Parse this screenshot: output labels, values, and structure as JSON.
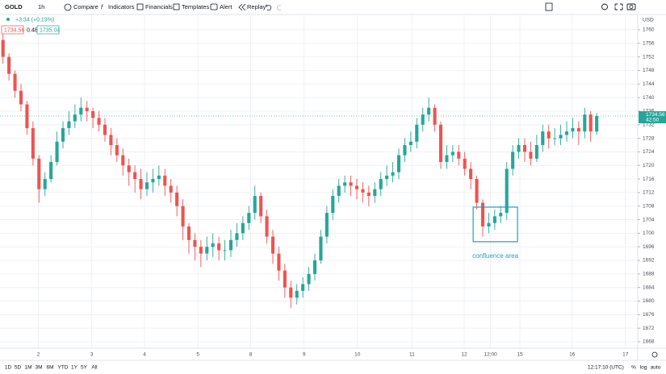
{
  "toolbar": {
    "symbol": "GOLD",
    "interval": "1h",
    "buttons": [
      "Compare",
      "Indicators",
      "Financials",
      "Templates",
      "Alert",
      "Replay"
    ]
  },
  "legend": {
    "change": "+3.34 (+0.19%)",
    "bid": "1734.56",
    "spread": "0.48",
    "ask": "1735.04"
  },
  "bottom_bar": {
    "ranges": [
      "1D",
      "5D",
      "1M",
      "3M",
      "6M",
      "YTD",
      "1Y",
      "5Y",
      "All"
    ],
    "clock": "12:17:10 (UTC)",
    "options": [
      "%",
      "log",
      "auto"
    ]
  },
  "chart_data": {
    "type": "candlestick",
    "currency": "USD",
    "countdown": "42:50",
    "up_color": "#26a69a",
    "down_color": "#ef5350",
    "grid": true,
    "x": [
      0,
      1,
      2,
      3,
      4,
      5,
      6,
      7,
      8,
      9,
      10,
      11,
      12,
      13,
      14,
      15,
      16,
      17,
      18,
      19,
      20,
      21,
      22,
      23,
      24,
      25,
      26,
      27,
      28,
      29,
      30,
      31,
      32,
      33,
      34,
      35,
      36,
      37,
      38,
      39,
      40,
      41,
      42,
      43,
      44,
      45,
      46,
      47,
      48,
      49,
      50,
      51,
      52,
      53,
      54,
      55,
      56,
      57,
      58,
      59,
      60,
      61,
      62,
      63,
      64,
      65,
      66,
      67,
      68,
      69,
      70,
      71,
      72,
      73,
      74,
      75,
      76,
      77,
      78,
      79,
      80,
      81,
      82,
      83,
      84,
      85,
      86,
      87,
      88,
      89,
      90,
      91,
      92,
      93,
      94,
      95,
      96,
      97,
      98,
      99
    ],
    "open": [
      1757,
      1752,
      1747,
      1742,
      1738,
      1731,
      1722,
      1713,
      1716,
      1721,
      1727,
      1731,
      1733,
      1735,
      1737,
      1736,
      1734,
      1732,
      1729,
      1726,
      1723,
      1720,
      1718,
      1716,
      1713,
      1715,
      1716,
      1717,
      1714,
      1712,
      1708,
      1702,
      1698,
      1696,
      1694,
      1696,
      1697,
      1695,
      1695,
      1698,
      1700,
      1703,
      1706,
      1711,
      1705,
      1699,
      1694,
      1689,
      1684,
      1681,
      1683,
      1685,
      1688,
      1692,
      1699,
      1706,
      1711,
      1714,
      1715,
      1714,
      1713,
      1712,
      1711,
      1713,
      1716,
      1717,
      1718,
      1723,
      1726,
      1727,
      1732,
      1735,
      1737,
      1732,
      1721,
      1723,
      1724,
      1722,
      1719,
      1716,
      1709,
      1702,
      1703,
      1705,
      1706,
      1719,
      1724,
      1726,
      1724,
      1722,
      1726,
      1730,
      1728,
      1728,
      1729,
      1730,
      1731,
      1730,
      1735,
      1730
    ],
    "high": [
      1759,
      1753,
      1748,
      1744,
      1739,
      1733,
      1723,
      1718,
      1723,
      1730,
      1733,
      1736,
      1738,
      1740,
      1739,
      1737,
      1736,
      1734,
      1731,
      1728,
      1725,
      1722,
      1720,
      1719,
      1718,
      1719,
      1720,
      1719,
      1716,
      1714,
      1710,
      1703,
      1700,
      1698,
      1699,
      1700,
      1699,
      1698,
      1701,
      1703,
      1705,
      1708,
      1714,
      1712,
      1707,
      1701,
      1696,
      1691,
      1686,
      1685,
      1687,
      1690,
      1694,
      1701,
      1708,
      1713,
      1716,
      1717,
      1717,
      1716,
      1715,
      1714,
      1715,
      1718,
      1720,
      1721,
      1725,
      1728,
      1730,
      1734,
      1737,
      1740,
      1738,
      1733,
      1726,
      1726,
      1726,
      1724,
      1721,
      1717,
      1710,
      1706,
      1707,
      1708,
      1721,
      1726,
      1728,
      1728,
      1727,
      1729,
      1732,
      1732,
      1731,
      1732,
      1733,
      1734,
      1733,
      1737,
      1736,
      1735.5
    ],
    "low": [
      1750,
      1745,
      1740,
      1736,
      1729,
      1720,
      1709,
      1711,
      1715,
      1720,
      1725,
      1729,
      1731,
      1733,
      1733,
      1731,
      1730,
      1727,
      1723,
      1721,
      1717,
      1714,
      1712,
      1710,
      1711,
      1712,
      1714,
      1711,
      1709,
      1705,
      1698,
      1694,
      1692,
      1690,
      1692,
      1693,
      1692,
      1692,
      1693,
      1696,
      1698,
      1701,
      1704,
      1703,
      1697,
      1691,
      1686,
      1681,
      1678,
      1679,
      1681,
      1683,
      1686,
      1691,
      1697,
      1704,
      1709,
      1712,
      1711,
      1710,
      1709,
      1708,
      1709,
      1711,
      1714,
      1715,
      1716,
      1721,
      1724,
      1725,
      1730,
      1733,
      1730,
      1719,
      1719,
      1721,
      1720,
      1717,
      1713,
      1707,
      1699,
      1700,
      1701,
      1703,
      1704,
      1717,
      1722,
      1721,
      1720,
      1721,
      1724,
      1725,
      1726,
      1726,
      1727,
      1728,
      1726,
      1728,
      1727,
      1729
    ],
    "close": [
      1752,
      1747,
      1742,
      1738,
      1731,
      1722,
      1713,
      1716,
      1721,
      1727,
      1731,
      1733,
      1735,
      1737,
      1736,
      1734,
      1732,
      1729,
      1726,
      1723,
      1720,
      1718,
      1716,
      1713,
      1715,
      1716,
      1717,
      1714,
      1712,
      1708,
      1702,
      1698,
      1696,
      1694,
      1696,
      1697,
      1695,
      1695,
      1698,
      1700,
      1703,
      1706,
      1711,
      1705,
      1699,
      1694,
      1689,
      1684,
      1681,
      1683,
      1685,
      1688,
      1692,
      1699,
      1706,
      1711,
      1714,
      1715,
      1714,
      1713,
      1712,
      1711,
      1713,
      1716,
      1717,
      1718,
      1723,
      1726,
      1727,
      1732,
      1735,
      1737,
      1732,
      1721,
      1723,
      1724,
      1722,
      1719,
      1716,
      1709,
      1702,
      1703,
      1705,
      1706,
      1719,
      1724,
      1726,
      1724,
      1722,
      1726,
      1730,
      1728,
      1728,
      1729,
      1730,
      1731,
      1730,
      1735,
      1730,
      1734.56
    ],
    "xlim": [
      -0.5,
      104.5
    ],
    "xticks": [
      {
        "value": 5.9,
        "label": "2"
      },
      {
        "value": 14.8,
        "label": "3"
      },
      {
        "value": 23.6,
        "label": "4"
      },
      {
        "value": 32.5,
        "label": "5"
      },
      {
        "value": 41.3,
        "label": "8"
      },
      {
        "value": 50.2,
        "label": "9"
      },
      {
        "value": 59.1,
        "label": "10"
      },
      {
        "value": 68.2,
        "label": "11"
      },
      {
        "value": 76.9,
        "label": "12"
      },
      {
        "value": 81.3,
        "label": "12:00"
      },
      {
        "value": 86.2,
        "label": "15"
      },
      {
        "value": 94.9,
        "label": "16"
      },
      {
        "value": 103.8,
        "label": "17"
      }
    ],
    "ylim": [
      1666.1,
      1764.5
    ],
    "yticks": [
      1668,
      1672,
      1676,
      1680,
      1684,
      1688,
      1692,
      1696,
      1700,
      1704,
      1708,
      1712,
      1716,
      1720,
      1724,
      1728,
      1732,
      1736,
      1740,
      1744,
      1748,
      1752,
      1756,
      1760
    ],
    "annotation": {
      "text": "confluence area",
      "x0": 78.4,
      "x1": 85.8,
      "y0": 1697.5,
      "y1": 1707.7
    }
  }
}
